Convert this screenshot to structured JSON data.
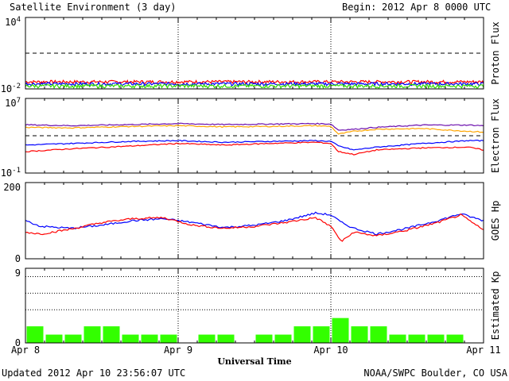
{
  "header": {
    "title": "Satellite Environment (3 day)",
    "begin_label": "Begin:",
    "begin_value": "2012 Apr 8 0000 UTC"
  },
  "footer": {
    "updated": "Updated 2012 Apr 10 23:56:07 UTC",
    "source": "NOAA/SWPC Boulder, CO USA",
    "xlabel": "Universal Time"
  },
  "x_ticks": [
    "Apr 8",
    "Apr 9",
    "Apr 10",
    "Apr 11"
  ],
  "colors": {
    "red": "#ff0000",
    "blue": "#0000ff",
    "green": "#33dd00",
    "orange": "#ffa500",
    "purple": "#6a0dad",
    "bar": "#33ff00",
    "axis": "#000000"
  },
  "chart_data": [
    {
      "type": "line",
      "name": "proton-flux",
      "ylabel": "Proton Flux",
      "y_scale": "log",
      "ylim": [
        0.01,
        10000
      ],
      "y_tick_labels": [
        "10^4",
        "10^-2"
      ],
      "threshold": 10,
      "x_range_days": [
        0,
        3
      ],
      "series": [
        {
          "color": "red",
          "level": 0.04,
          "noise": 0.012
        },
        {
          "color": "blue",
          "level": 0.027,
          "noise": 0.008
        },
        {
          "color": "green",
          "level": 0.018,
          "noise": 0.006
        }
      ]
    },
    {
      "type": "line",
      "name": "electron-flux",
      "ylabel": "Electron Flux",
      "y_scale": "log",
      "ylim": [
        0.1,
        10000000
      ],
      "y_tick_labels": [
        "10^7",
        "10^-1"
      ],
      "threshold": 1000,
      "x": [
        0,
        0.3,
        0.7,
        1.0,
        1.3,
        1.6,
        1.9,
        2.0,
        2.05,
        2.15,
        2.3,
        2.6,
        2.9,
        3.0
      ],
      "series": [
        {
          "color": "purple",
          "values": [
            15000,
            12000,
            16000,
            20000,
            16000,
            18000,
            20000,
            18000,
            4000,
            5000,
            8000,
            14000,
            14000,
            12000
          ]
        },
        {
          "color": "orange",
          "values": [
            8000,
            7000,
            10000,
            12000,
            9000,
            10000,
            12000,
            10000,
            1500,
            3000,
            5000,
            6000,
            3000,
            2500
          ]
        },
        {
          "color": "blue",
          "values": [
            100,
            150,
            250,
            300,
            200,
            250,
            300,
            250,
            80,
            30,
            60,
            150,
            300,
            300
          ]
        },
        {
          "color": "red",
          "values": [
            20,
            40,
            80,
            150,
            100,
            150,
            200,
            150,
            20,
            10,
            30,
            50,
            60,
            30
          ]
        }
      ]
    },
    {
      "type": "line",
      "name": "goes-hp",
      "ylabel": "GOES Hp",
      "ylim": [
        0,
        200
      ],
      "y_tick_labels": [
        "200",
        "0"
      ],
      "x": [
        0,
        0.1,
        0.3,
        0.5,
        0.7,
        0.9,
        1.1,
        1.3,
        1.5,
        1.7,
        1.9,
        2.0,
        2.07,
        2.15,
        2.3,
        2.5,
        2.7,
        2.85,
        3.0
      ],
      "series": [
        {
          "color": "blue",
          "values": [
            100,
            85,
            80,
            88,
            100,
            105,
            95,
            82,
            88,
            100,
            120,
            115,
            95,
            80,
            65,
            80,
            100,
            118,
            100
          ]
        },
        {
          "color": "red",
          "values": [
            70,
            65,
            78,
            95,
            105,
            108,
            88,
            80,
            85,
            95,
            108,
            85,
            45,
            70,
            60,
            75,
            95,
            115,
            75
          ]
        }
      ]
    },
    {
      "type": "bar",
      "name": "estimated-kp",
      "ylabel": "Estimated Kp",
      "ylim": [
        0,
        9
      ],
      "y_tick_labels": [
        "9",
        "0"
      ],
      "gridlines": [
        4,
        6,
        8
      ],
      "values": [
        2,
        1,
        1,
        2,
        2,
        1,
        1,
        1,
        0,
        1,
        1,
        0,
        1,
        1,
        2,
        2,
        3,
        2,
        2,
        1,
        1,
        1,
        1,
        0
      ]
    }
  ]
}
